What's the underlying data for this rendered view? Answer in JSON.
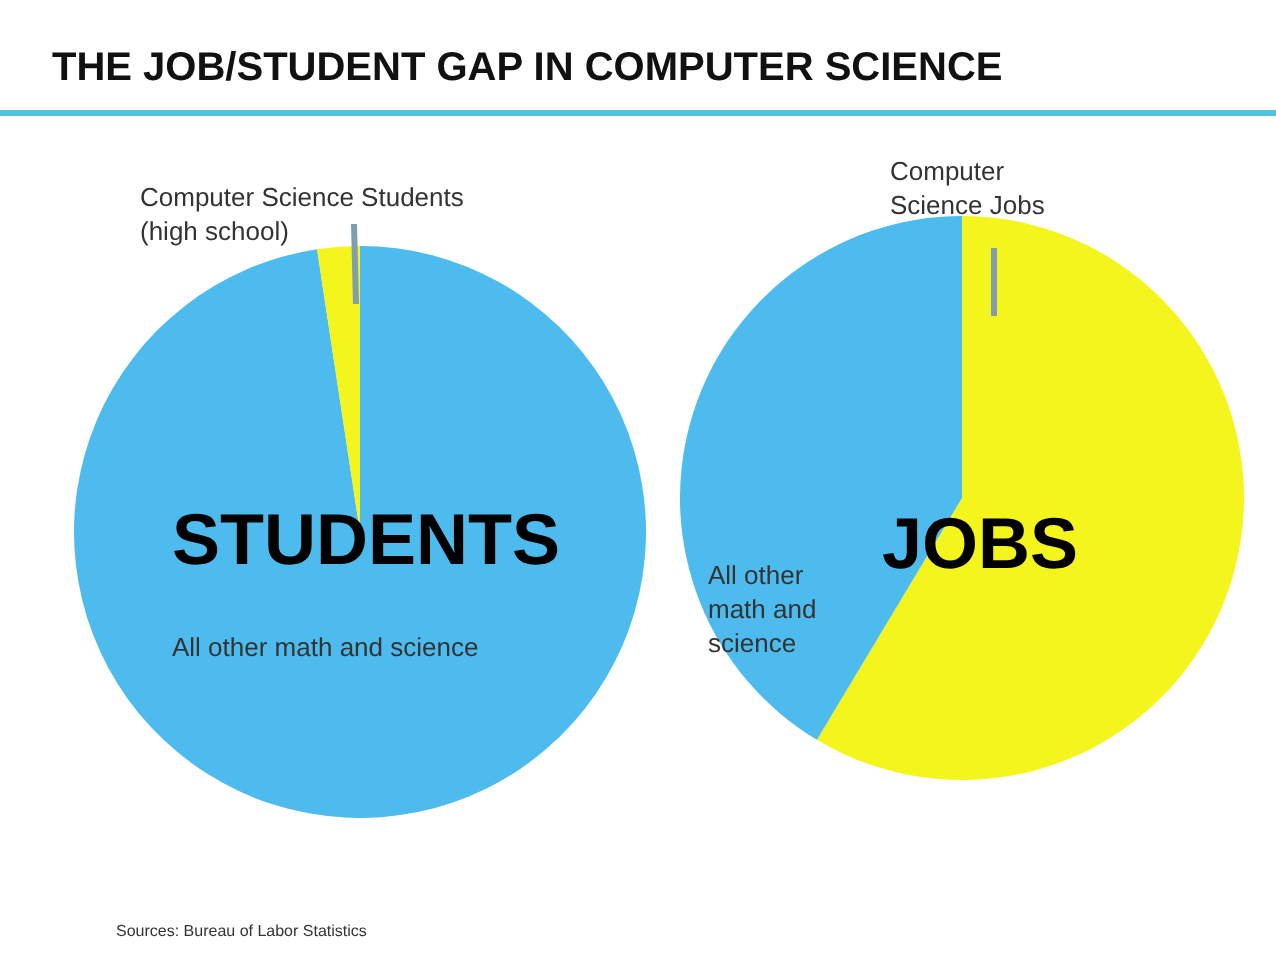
{
  "chart_data": [
    {
      "type": "other",
      "title": "THE JOB/STUDENT GAP IN COMPUTER SCIENCE",
      "annotations": [
        "Sources: Bureau of Labor Statistics"
      ]
    },
    {
      "type": "pie",
      "title": "STUDENTS",
      "categories": [
        "All other math and science",
        "Computer Science Students (high school)"
      ],
      "values": [
        97.6,
        2.4
      ],
      "colors": [
        "#4dbbee",
        "#f5f51e"
      ],
      "legend": false
    },
    {
      "type": "pie",
      "title": "JOBS",
      "categories": [
        "Computer Science Jobs",
        "All other math and science"
      ],
      "values": [
        58.6,
        41.4
      ],
      "colors": [
        "#f5f51e",
        "#4dbbee"
      ],
      "legend": false
    }
  ]
}
